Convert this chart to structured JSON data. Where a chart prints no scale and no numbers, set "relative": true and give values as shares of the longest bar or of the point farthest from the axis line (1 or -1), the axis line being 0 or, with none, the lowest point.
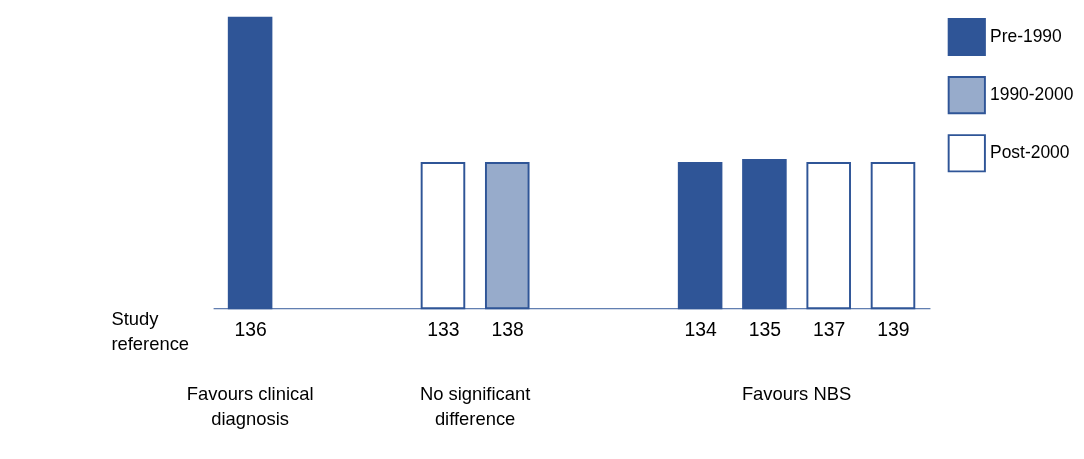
{
  "chart_data": {
    "type": "bar",
    "relative": true,
    "xlabel": "Study reference",
    "categories": [
      "136",
      null,
      null,
      "133",
      "138",
      null,
      null,
      "134",
      "135",
      "137",
      "139"
    ],
    "series": [
      {
        "name": "Pre-1990",
        "color": "#2f5597",
        "values": [
          1,
          null,
          null,
          null,
          null,
          null,
          null,
          0.5,
          0.51,
          null,
          null
        ]
      },
      {
        "name": "1990-2000",
        "color": "#97abcb",
        "values": [
          null,
          null,
          null,
          null,
          0.5,
          null,
          null,
          null,
          null,
          null,
          null
        ]
      },
      {
        "name": "Post-2000",
        "color": "#ffffff",
        "values": [
          null,
          null,
          null,
          0.5,
          null,
          null,
          null,
          null,
          null,
          0.5,
          0.5
        ]
      }
    ],
    "annotations": [
      "Favours clinical diagnosis",
      "No significant difference",
      "Favours NBS"
    ],
    "legend": "top right",
    "grid": false
  }
}
